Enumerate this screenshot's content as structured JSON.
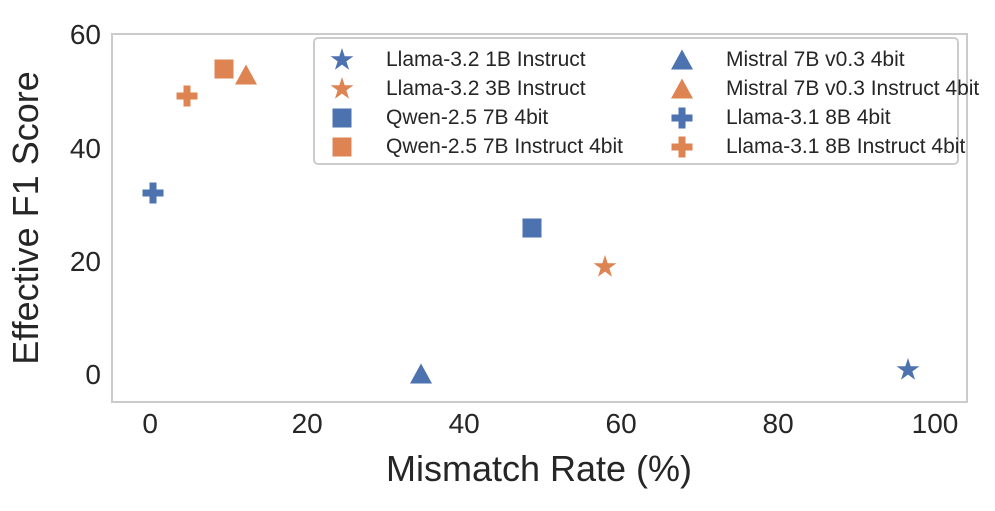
{
  "chart_data": {
    "type": "scatter",
    "title": "",
    "xlabel": "Mismatch Rate (%)",
    "ylabel": "Effective F1 Score",
    "xlim": [
      -5,
      104.2
    ],
    "ylim": [
      -4.95,
      60.4
    ],
    "xticks": [
      "0",
      "20",
      "40",
      "60",
      "80",
      "100"
    ],
    "xtick_values": [
      0,
      20,
      40,
      60,
      80,
      100
    ],
    "yticks": [
      "0",
      "20",
      "40",
      "60"
    ],
    "ytick_values": [
      0,
      20,
      40,
      60
    ],
    "grid": false,
    "legend_position": "upper center inside plot, two columns",
    "palette": {
      "blue": "#4C72B0",
      "orange": "#DD8452"
    },
    "spine_color": "#cbcbcb",
    "text_color": "#262626",
    "series": [
      {
        "name": "Llama-3.2 1B Instruct",
        "marker": "star",
        "color": "blue",
        "x": 96.5,
        "y": 0.8
      },
      {
        "name": "Llama-3.2 3B Instruct",
        "marker": "star",
        "color": "orange",
        "x": 58.0,
        "y": 19.0
      },
      {
        "name": "Qwen-2.5 7B 4bit",
        "marker": "square",
        "color": "blue",
        "x": 48.6,
        "y": 26.0
      },
      {
        "name": "Qwen-2.5 7B Instruct 4bit",
        "marker": "square",
        "color": "orange",
        "x": 9.4,
        "y": 54.0
      },
      {
        "name": "Mistral 7B v0.3 4bit",
        "marker": "triangle",
        "color": "blue",
        "x": 34.5,
        "y": 0.2
      },
      {
        "name": "Mistral 7B v0.3 Instruct 4bit",
        "marker": "triangle",
        "color": "orange",
        "x": 12.2,
        "y": 53.0
      },
      {
        "name": "Llama-3.1 8B 4bit",
        "marker": "plus",
        "color": "blue",
        "x": 0.3,
        "y": 32.2
      },
      {
        "name": "Llama-3.1 8B Instruct 4bit",
        "marker": "plus",
        "color": "orange",
        "x": 4.7,
        "y": 49.2
      }
    ]
  }
}
